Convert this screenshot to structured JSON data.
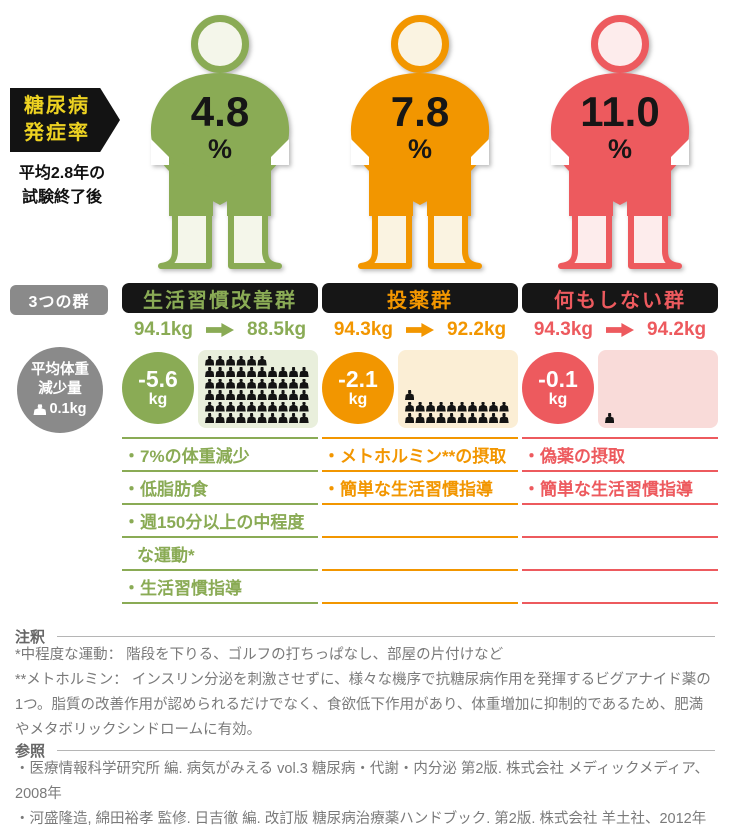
{
  "header_badge": {
    "title_line1": "糖尿病",
    "title_line2": "発症率",
    "subtitle_line1": "平均2.8年の",
    "subtitle_line2": "試験終了後",
    "bg": "#131313",
    "text_color": "#edd221"
  },
  "groups_badge_label": "3つの群",
  "avg_loss_badge": {
    "line1": "平均体重",
    "line2": "減少量",
    "unit_per_icon": "0.1kg",
    "bg": "#8a8a8a"
  },
  "groups": [
    {
      "name": "生活習慣改善群",
      "color": "#8aab55",
      "light": "#e9efdc",
      "figure_fill": "#f4f6ea",
      "rate": "4.8",
      "rate_unit": "%",
      "weight_before": "94.1kg",
      "weight_after": "88.5kg",
      "loss": "-5.6",
      "loss_unit": "kg",
      "icon_count": 56,
      "list_rows": [
        "・7%の体重減少",
        "・低脂肪食",
        "・週150分以上の中程度",
        "な運動*",
        "・生活習慣指導"
      ]
    },
    {
      "name": "投薬群",
      "color": "#f29600",
      "light": "#fbeed5",
      "figure_fill": "#faf3e1",
      "rate": "7.8",
      "rate_unit": "%",
      "weight_before": "94.3kg",
      "weight_after": "92.2kg",
      "loss": "-2.1",
      "loss_unit": "kg",
      "icon_count": 21,
      "list_rows": [
        "・メトホルミン**の摂取",
        "・簡単な生活習慣指導",
        "",
        "",
        ""
      ]
    },
    {
      "name": "何もしない群",
      "color": "#ed5a5e",
      "light": "#f9dbd9",
      "figure_fill": "#fdecec",
      "rate": "11.0",
      "rate_unit": "%",
      "weight_before": "94.3kg",
      "weight_after": "94.2kg",
      "loss": "-0.1",
      "loss_unit": "kg",
      "icon_count": 1,
      "list_rows": [
        "・偽薬の摂取",
        "・簡単な生活習慣指導",
        "",
        "",
        ""
      ]
    }
  ],
  "notes": {
    "label": "注釈",
    "line1": "*中程度な運動： 階段を下りる、ゴルフの打ちっぱなし、部屋の片付けなど",
    "line2": "**メトホルミン： インスリン分泌を刺激させずに、様々な機序で抗糖尿病作用を発揮するビグアナイド薬の1つ。脂質の改善作用が認められるだけでなく、食欲低下作用があり、体重増加に抑制的であるため、肥満やメタボリックシンドロームに有効。"
  },
  "references": {
    "label": "参照",
    "line1": "・医療情報科学研究所 編. 病気がみえる vol.3 糖尿病・代謝・内分泌 第2版. 株式会社 メディックメディア、2008年",
    "line2": "・河盛隆造, 綿田裕孝 監修. 日吉徹 編. 改訂版 糖尿病治療薬ハンドブック. 第2版. 株式会社 羊土社、2012年"
  }
}
